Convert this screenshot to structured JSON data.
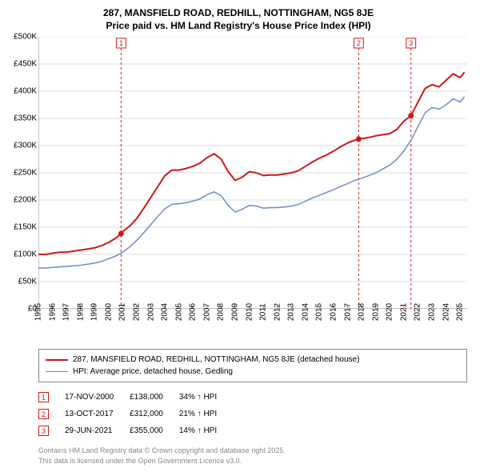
{
  "title_line1": "287, MANSFIELD ROAD, REDHILL, NOTTINGHAM, NG5 8JE",
  "title_line2": "Price paid vs. HM Land Registry's House Price Index (HPI)",
  "chart": {
    "type": "line",
    "background_color": "#ffffff",
    "grid_color": "#dcdcdc",
    "axis_color": "#888888",
    "xlim": [
      1995,
      2025.5
    ],
    "ylim": [
      0,
      500000
    ],
    "ytick_step": 50000,
    "yticks": [
      "£0",
      "£50K",
      "£100K",
      "£150K",
      "£200K",
      "£250K",
      "£300K",
      "£350K",
      "£400K",
      "£450K",
      "£500K"
    ],
    "xtick_step": 1,
    "xticks": [
      1995,
      1996,
      1997,
      1998,
      1999,
      2000,
      2001,
      2002,
      2003,
      2004,
      2005,
      2006,
      2007,
      2008,
      2009,
      2010,
      2011,
      2012,
      2013,
      2014,
      2015,
      2016,
      2017,
      2018,
      2019,
      2020,
      2021,
      2022,
      2023,
      2024,
      2025
    ],
    "series": [
      {
        "name": "287, MANSFIELD ROAD, REDHILL, NOTTINGHAM, NG5 8JE (detached house)",
        "color": "#d01716",
        "line_width": 2,
        "data": [
          [
            1995,
            100000
          ],
          [
            1995.5,
            100000
          ],
          [
            1996,
            102000
          ],
          [
            1996.5,
            104000
          ],
          [
            1997,
            104000
          ],
          [
            1997.5,
            106000
          ],
          [
            1998,
            108000
          ],
          [
            1998.5,
            110000
          ],
          [
            1999,
            112000
          ],
          [
            1999.5,
            116000
          ],
          [
            2000,
            122000
          ],
          [
            2000.5,
            130000
          ],
          [
            2000.88,
            138000
          ],
          [
            2001,
            142000
          ],
          [
            2001.5,
            152000
          ],
          [
            2002,
            166000
          ],
          [
            2002.5,
            185000
          ],
          [
            2003,
            205000
          ],
          [
            2003.5,
            225000
          ],
          [
            2004,
            245000
          ],
          [
            2004.5,
            255000
          ],
          [
            2005,
            255000
          ],
          [
            2005.5,
            258000
          ],
          [
            2006,
            262000
          ],
          [
            2006.5,
            268000
          ],
          [
            2007,
            278000
          ],
          [
            2007.5,
            285000
          ],
          [
            2008,
            275000
          ],
          [
            2008.5,
            252000
          ],
          [
            2009,
            236000
          ],
          [
            2009.5,
            242000
          ],
          [
            2010,
            252000
          ],
          [
            2010.5,
            250000
          ],
          [
            2011,
            245000
          ],
          [
            2011.5,
            246000
          ],
          [
            2012,
            246000
          ],
          [
            2012.5,
            248000
          ],
          [
            2013,
            250000
          ],
          [
            2013.5,
            254000
          ],
          [
            2014,
            262000
          ],
          [
            2014.5,
            270000
          ],
          [
            2015,
            277000
          ],
          [
            2015.5,
            283000
          ],
          [
            2016,
            290000
          ],
          [
            2016.5,
            298000
          ],
          [
            2017,
            305000
          ],
          [
            2017.5,
            310000
          ],
          [
            2017.78,
            312000
          ],
          [
            2018,
            313000
          ],
          [
            2018.5,
            315000
          ],
          [
            2019,
            318000
          ],
          [
            2019.5,
            320000
          ],
          [
            2020,
            322000
          ],
          [
            2020.5,
            330000
          ],
          [
            2021,
            345000
          ],
          [
            2021.5,
            355000
          ],
          [
            2022,
            380000
          ],
          [
            2022.5,
            405000
          ],
          [
            2023,
            412000
          ],
          [
            2023.5,
            408000
          ],
          [
            2024,
            420000
          ],
          [
            2024.5,
            432000
          ],
          [
            2025,
            425000
          ],
          [
            2025.3,
            435000
          ]
        ]
      },
      {
        "name": "HPI: Average price, detached house, Gedling",
        "color": "#6a8fc7",
        "line_width": 1.5,
        "data": [
          [
            1995,
            75000
          ],
          [
            1995.5,
            75000
          ],
          [
            1996,
            76000
          ],
          [
            1996.5,
            77000
          ],
          [
            1997,
            78000
          ],
          [
            1997.5,
            79000
          ],
          [
            1998,
            80000
          ],
          [
            1998.5,
            82000
          ],
          [
            1999,
            84000
          ],
          [
            1999.5,
            87000
          ],
          [
            2000,
            92000
          ],
          [
            2000.5,
            97000
          ],
          [
            2001,
            104000
          ],
          [
            2001.5,
            114000
          ],
          [
            2002,
            126000
          ],
          [
            2002.5,
            140000
          ],
          [
            2003,
            155000
          ],
          [
            2003.5,
            170000
          ],
          [
            2004,
            184000
          ],
          [
            2004.5,
            192000
          ],
          [
            2005,
            193000
          ],
          [
            2005.5,
            195000
          ],
          [
            2006,
            198000
          ],
          [
            2006.5,
            202000
          ],
          [
            2007,
            210000
          ],
          [
            2007.5,
            215000
          ],
          [
            2008,
            208000
          ],
          [
            2008.5,
            190000
          ],
          [
            2009,
            178000
          ],
          [
            2009.5,
            183000
          ],
          [
            2010,
            190000
          ],
          [
            2010.5,
            189000
          ],
          [
            2011,
            185000
          ],
          [
            2011.5,
            186000
          ],
          [
            2012,
            186000
          ],
          [
            2012.5,
            187000
          ],
          [
            2013,
            189000
          ],
          [
            2013.5,
            192000
          ],
          [
            2014,
            198000
          ],
          [
            2014.5,
            204000
          ],
          [
            2015,
            209000
          ],
          [
            2015.5,
            214000
          ],
          [
            2016,
            219000
          ],
          [
            2016.5,
            225000
          ],
          [
            2017,
            230000
          ],
          [
            2017.5,
            236000
          ],
          [
            2018,
            240000
          ],
          [
            2018.5,
            245000
          ],
          [
            2019,
            250000
          ],
          [
            2019.5,
            257000
          ],
          [
            2020,
            264000
          ],
          [
            2020.5,
            275000
          ],
          [
            2021,
            290000
          ],
          [
            2021.5,
            310000
          ],
          [
            2022,
            335000
          ],
          [
            2022.5,
            360000
          ],
          [
            2023,
            370000
          ],
          [
            2023.5,
            367000
          ],
          [
            2024,
            375000
          ],
          [
            2024.5,
            386000
          ],
          [
            2025,
            380000
          ],
          [
            2025.3,
            390000
          ]
        ]
      }
    ],
    "event_lines": {
      "color": "#d01716",
      "dash": "3,3",
      "width": 1,
      "events": [
        {
          "label": "1",
          "x": 2000.88
        },
        {
          "label": "2",
          "x": 2017.78
        },
        {
          "label": "3",
          "x": 2021.5
        }
      ]
    },
    "sale_dots": {
      "color": "#d01716",
      "radius": 3.5,
      "points": [
        {
          "x": 2000.88,
          "y": 138000
        },
        {
          "x": 2017.78,
          "y": 312000
        },
        {
          "x": 2021.5,
          "y": 355000
        }
      ]
    }
  },
  "legend": [
    {
      "color": "#d01716",
      "width": 2,
      "label": "287, MANSFIELD ROAD, REDHILL, NOTTINGHAM, NG5 8JE (detached house)"
    },
    {
      "color": "#6a8fc7",
      "width": 1.5,
      "label": "HPI: Average price, detached house, Gedling"
    }
  ],
  "markers_table": [
    {
      "n": "1",
      "date": "17-NOV-2000",
      "price": "£138,000",
      "delta": "34% ↑ HPI"
    },
    {
      "n": "2",
      "date": "13-OCT-2017",
      "price": "£312,000",
      "delta": "21% ↑ HPI"
    },
    {
      "n": "3",
      "date": "29-JUN-2021",
      "price": "£355,000",
      "delta": "14% ↑ HPI"
    }
  ],
  "footer_line1": "Contains HM Land Registry data © Crown copyright and database right 2025.",
  "footer_line2": "This data is licensed under the Open Government Licence v3.0."
}
